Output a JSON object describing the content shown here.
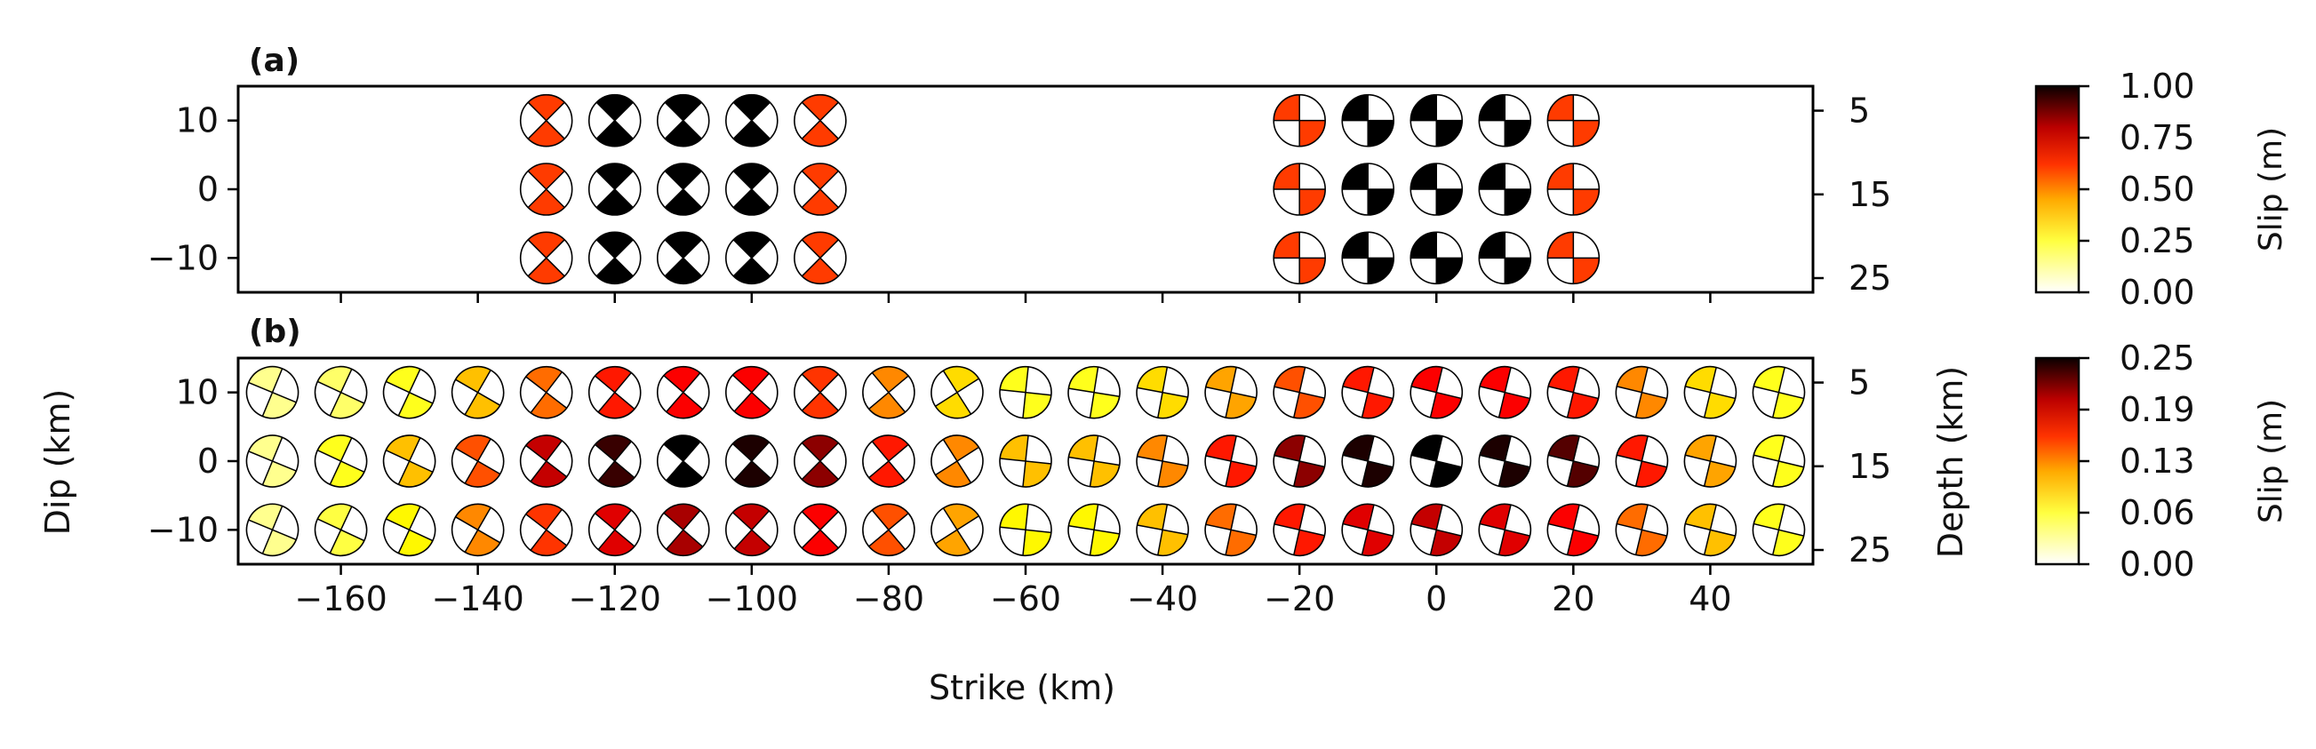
{
  "chart_data": [
    {
      "type": "scatter",
      "panel_label": "(a)",
      "xlim": [
        -175,
        55
      ],
      "ylim": [
        -15,
        15
      ],
      "y_ticks": [
        10,
        0,
        -10
      ],
      "y_tick_labels": [
        "10",
        "0",
        "−10"
      ],
      "depth_ticks": [
        5,
        15,
        25
      ],
      "depth_tick_labels": [
        "5",
        "15",
        "25"
      ],
      "rows": [
        10,
        0,
        -10
      ],
      "row_depths": [
        7.5,
        15,
        22.5
      ],
      "groups": [
        {
          "mechanism": "thrust",
          "strikes": [
            -130,
            -120,
            -110,
            -100,
            -90
          ],
          "slip": [
            [
              0.55,
              1.0,
              1.0,
              1.0,
              0.55
            ],
            [
              0.55,
              1.0,
              1.1,
              1.0,
              0.55
            ],
            [
              0.55,
              1.0,
              1.0,
              1.0,
              0.55
            ]
          ]
        },
        {
          "mechanism": "strike-slip",
          "strikes": [
            0,
            10,
            20,
            30,
            40
          ],
          "strike_offset_km": -20,
          "slip": [
            [
              0.55,
              1.0,
              1.0,
              1.0,
              0.55
            ],
            [
              0.55,
              1.0,
              1.1,
              1.0,
              0.55
            ],
            [
              0.55,
              1.0,
              1.0,
              1.0,
              0.55
            ]
          ]
        }
      ],
      "colorbar": {
        "label": "Slip (m)",
        "min": 0,
        "max": 1,
        "tick_values": [
          0,
          0.25,
          0.5,
          0.75,
          1.0
        ],
        "tick_labels": [
          "0.00",
          "0.25",
          "0.50",
          "0.75",
          "1.00"
        ]
      }
    },
    {
      "type": "scatter",
      "panel_label": "(b)",
      "xlim": [
        -175,
        55
      ],
      "ylim": [
        -15,
        15
      ],
      "xlabel": "Strike (km)",
      "ylabel": "Dip (km)",
      "y2label": "Depth (km)",
      "x_ticks": [
        -160,
        -140,
        -120,
        -100,
        -80,
        -60,
        -40,
        -20,
        0,
        20,
        40
      ],
      "x_tick_labels": [
        "−160",
        "−140",
        "−120",
        "−100",
        "−80",
        "−60",
        "−40",
        "−20",
        "0",
        "20",
        "40"
      ],
      "y_ticks": [
        10,
        0,
        -10
      ],
      "y_tick_labels": [
        "10",
        "0",
        "−10"
      ],
      "depth_ticks": [
        5,
        15,
        25
      ],
      "depth_tick_labels": [
        "5",
        "15",
        "25"
      ],
      "rows": [
        10,
        0,
        -10
      ],
      "strikes": [
        -170,
        -160,
        -150,
        -140,
        -130,
        -120,
        -110,
        -100,
        -90,
        -80,
        -70,
        -60,
        -50,
        -40,
        -30,
        -20,
        -10,
        0,
        10,
        20,
        30,
        40,
        50
      ],
      "slip": [
        [
          0.03,
          0.04,
          0.06,
          0.09,
          0.12,
          0.15,
          0.16,
          0.16,
          0.14,
          0.11,
          0.08,
          0.06,
          0.06,
          0.08,
          0.1,
          0.13,
          0.15,
          0.16,
          0.16,
          0.15,
          0.11,
          0.08,
          0.06
        ],
        [
          0.03,
          0.06,
          0.09,
          0.13,
          0.18,
          0.23,
          0.25,
          0.24,
          0.2,
          0.15,
          0.11,
          0.09,
          0.09,
          0.11,
          0.15,
          0.2,
          0.24,
          0.25,
          0.24,
          0.22,
          0.15,
          0.1,
          0.06
        ],
        [
          0.03,
          0.05,
          0.07,
          0.11,
          0.14,
          0.17,
          0.19,
          0.18,
          0.16,
          0.13,
          0.1,
          0.07,
          0.07,
          0.09,
          0.12,
          0.15,
          0.17,
          0.18,
          0.17,
          0.16,
          0.12,
          0.09,
          0.06
        ]
      ],
      "rake_deg": [
        150,
        140,
        130,
        115,
        95,
        90,
        90,
        90,
        90,
        80,
        60,
        40,
        20,
        5,
        0,
        0,
        0,
        0,
        0,
        0,
        0,
        0,
        0
      ],
      "strike_rotation_deg": [
        -45,
        -40,
        -40,
        -30,
        -15,
        -10,
        -8,
        -5,
        0,
        10,
        25,
        40,
        60,
        70,
        80,
        85,
        90,
        90,
        90,
        90,
        90,
        90,
        90
      ],
      "colorbar": {
        "label": "Slip (m)",
        "min": 0,
        "max": 0.25,
        "tick_values": [
          0,
          0.0625,
          0.125,
          0.1875,
          0.25
        ],
        "tick_labels": [
          "0.00",
          "0.06",
          "0.13",
          "0.19",
          "0.25"
        ]
      }
    }
  ],
  "colormap": "hot_r"
}
